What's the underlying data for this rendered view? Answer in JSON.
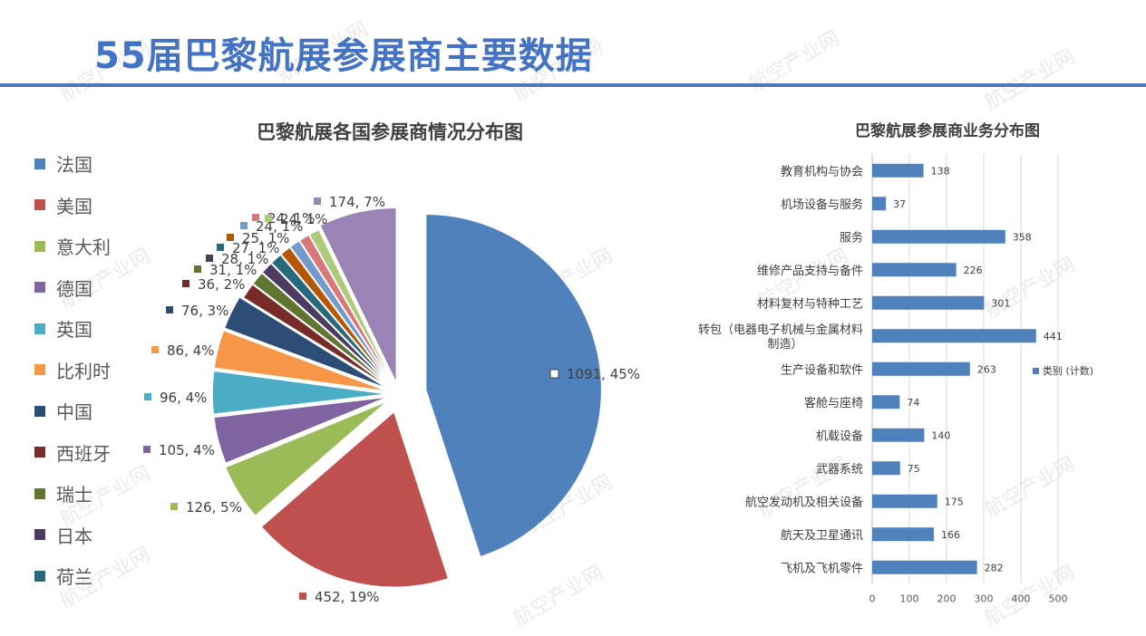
{
  "page": {
    "title": "55届巴黎航展参展商主要数据",
    "watermark": "航空产业网"
  },
  "chart_data": [
    {
      "type": "pie",
      "title": "巴黎航展各国参展商情况分布图",
      "legend_position": "left",
      "slices": [
        {
          "label": "法国",
          "value": 1091,
          "percent": "45%",
          "color": "#4F81BD"
        },
        {
          "label": "美国",
          "value": 452,
          "percent": "19%",
          "color": "#C0504D"
        },
        {
          "label": "意大利",
          "value": 126,
          "percent": "5%",
          "color": "#9BBB59"
        },
        {
          "label": "德国",
          "value": 105,
          "percent": "4%",
          "color": "#8064A2"
        },
        {
          "label": "英国",
          "value": 96,
          "percent": "4%",
          "color": "#4BACC6"
        },
        {
          "label": "比利时",
          "value": 86,
          "percent": "4%",
          "color": "#F79646"
        },
        {
          "label": "中国",
          "value": 76,
          "percent": "3%",
          "color": "#2C4D75"
        },
        {
          "label": "西班牙",
          "value": 36,
          "percent": "2%",
          "color": "#772C2A"
        },
        {
          "label": "瑞士",
          "value": 31,
          "percent": "1%",
          "color": "#5F7530"
        },
        {
          "label": "日本",
          "value": 28,
          "percent": "1%",
          "color": "#4D3B62"
        },
        {
          "label": "荷兰",
          "value": 27,
          "percent": "1%",
          "color": "#276A7C"
        },
        {
          "label": "",
          "value": 25,
          "percent": "1%",
          "color": "#B65708"
        },
        {
          "label": "",
          "value": 24,
          "percent": "1%",
          "color": "#729ACA"
        },
        {
          "label": "",
          "value": 24,
          "percent": "1%",
          "color": "#D9787A"
        },
        {
          "label": "",
          "value": 24,
          "percent": "1%",
          "color": "#AFCB79"
        },
        {
          "label": "",
          "value": 174,
          "percent": "7%",
          "color": "#9A84B5"
        }
      ],
      "data_labels": [
        "1091, 45%",
        "452, 19%",
        "126, 5%",
        "105, 4%",
        "96, 4%",
        "86, 4%",
        "76, 3%",
        "36, 2%",
        "31, 1%",
        "28, 1%",
        "27, 1%",
        "25, 1%",
        "24, 1%",
        "24, 1%",
        "24, 1%",
        "174, 7%"
      ],
      "legend_entries": [
        "法国",
        "美国",
        "意大利",
        "德国",
        "英国",
        "比利时",
        "中国",
        "西班牙",
        "瑞士",
        "日本",
        "荷兰"
      ]
    },
    {
      "type": "bar",
      "orientation": "horizontal",
      "title": "巴黎航展参展商业务分布图",
      "series": [
        {
          "name": "类别 (计数)",
          "color": "#4F81BD"
        }
      ],
      "categories": [
        "教育机构与协会",
        "机场设备与服务",
        "服务",
        "维修产品支持与备件",
        "材料复材与特种工艺",
        "转包（电器电子机械与金属材料制造）",
        "生产设备和软件",
        "客舱与座椅",
        "机载设备",
        "武器系统",
        "航空发动机及相关设备",
        "航天及卫星通讯",
        "飞机及飞机零件"
      ],
      "category_lines": [
        [
          "教育机构与协会"
        ],
        [
          "机场设备与服务"
        ],
        [
          "服务"
        ],
        [
          "维修产品支持与备件"
        ],
        [
          "材料复材与特种工艺"
        ],
        [
          "转包（电器电子机械与金属材料",
          "制造）"
        ],
        [
          "生产设备和软件"
        ],
        [
          "客舱与座椅"
        ],
        [
          "机载设备"
        ],
        [
          "武器系统"
        ],
        [
          "航空发动机及相关设备"
        ],
        [
          "航天及卫星通讯"
        ],
        [
          "飞机及飞机零件"
        ]
      ],
      "values": [
        138,
        37,
        358,
        226,
        301,
        441,
        263,
        74,
        140,
        75,
        175,
        166,
        282
      ],
      "xlim": [
        0,
        500
      ],
      "xticks": [
        0,
        100,
        200,
        300,
        400,
        500
      ],
      "grid": true,
      "legend_position": "right"
    }
  ]
}
